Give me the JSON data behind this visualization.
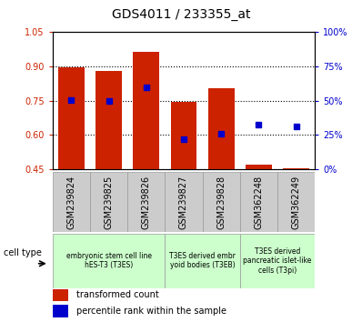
{
  "title": "GDS4011 / 233355_at",
  "samples": [
    "GSM239824",
    "GSM239825",
    "GSM239826",
    "GSM239827",
    "GSM239828",
    "GSM362248",
    "GSM362249"
  ],
  "bar_tops": [
    0.895,
    0.882,
    0.965,
    0.745,
    0.805,
    0.468,
    0.455
  ],
  "bar_bottom": 0.445,
  "blue_dots_y": [
    0.751,
    0.748,
    0.807,
    0.581,
    0.605,
    0.645,
    0.638
  ],
  "ylim_left": [
    0.45,
    1.05
  ],
  "ylim_right": [
    0.0,
    100.0
  ],
  "yticks_left": [
    0.45,
    0.6,
    0.75,
    0.9,
    1.05
  ],
  "yticks_right": [
    0,
    25,
    50,
    75,
    100
  ],
  "ytick_labels_right": [
    "0%",
    "25%",
    "50%",
    "75%",
    "100%"
  ],
  "bar_color": "#cc2200",
  "dot_color": "#0000cc",
  "left_tick_color": "#cc2200",
  "right_tick_color": "#0000cc",
  "grid_yticks": [
    0.6,
    0.75,
    0.9
  ],
  "cell_groups": [
    {
      "label": "embryonic stem cell line\nhES-T3 (T3ES)",
      "start": 0,
      "end": 3
    },
    {
      "label": "T3ES derived embr\nyoid bodies (T3EB)",
      "start": 3,
      "end": 5
    },
    {
      "label": "T3ES derived\npancreatic islet-like\ncells (T3pi)",
      "start": 5,
      "end": 7
    }
  ],
  "cell_group_color": "#ccffcc",
  "cell_group_edge": "#999999",
  "xticklabel_bg": "#cccccc",
  "xticklabel_edge": "#999999",
  "legend_labels": [
    "transformed count",
    "percentile rank within the sample"
  ],
  "legend_colors": [
    "#cc2200",
    "#0000cc"
  ],
  "cell_type_label": "cell type",
  "bar_width": 0.7,
  "title_fontsize": 10,
  "tick_fontsize": 7,
  "label_fontsize": 7,
  "legend_fontsize": 7
}
